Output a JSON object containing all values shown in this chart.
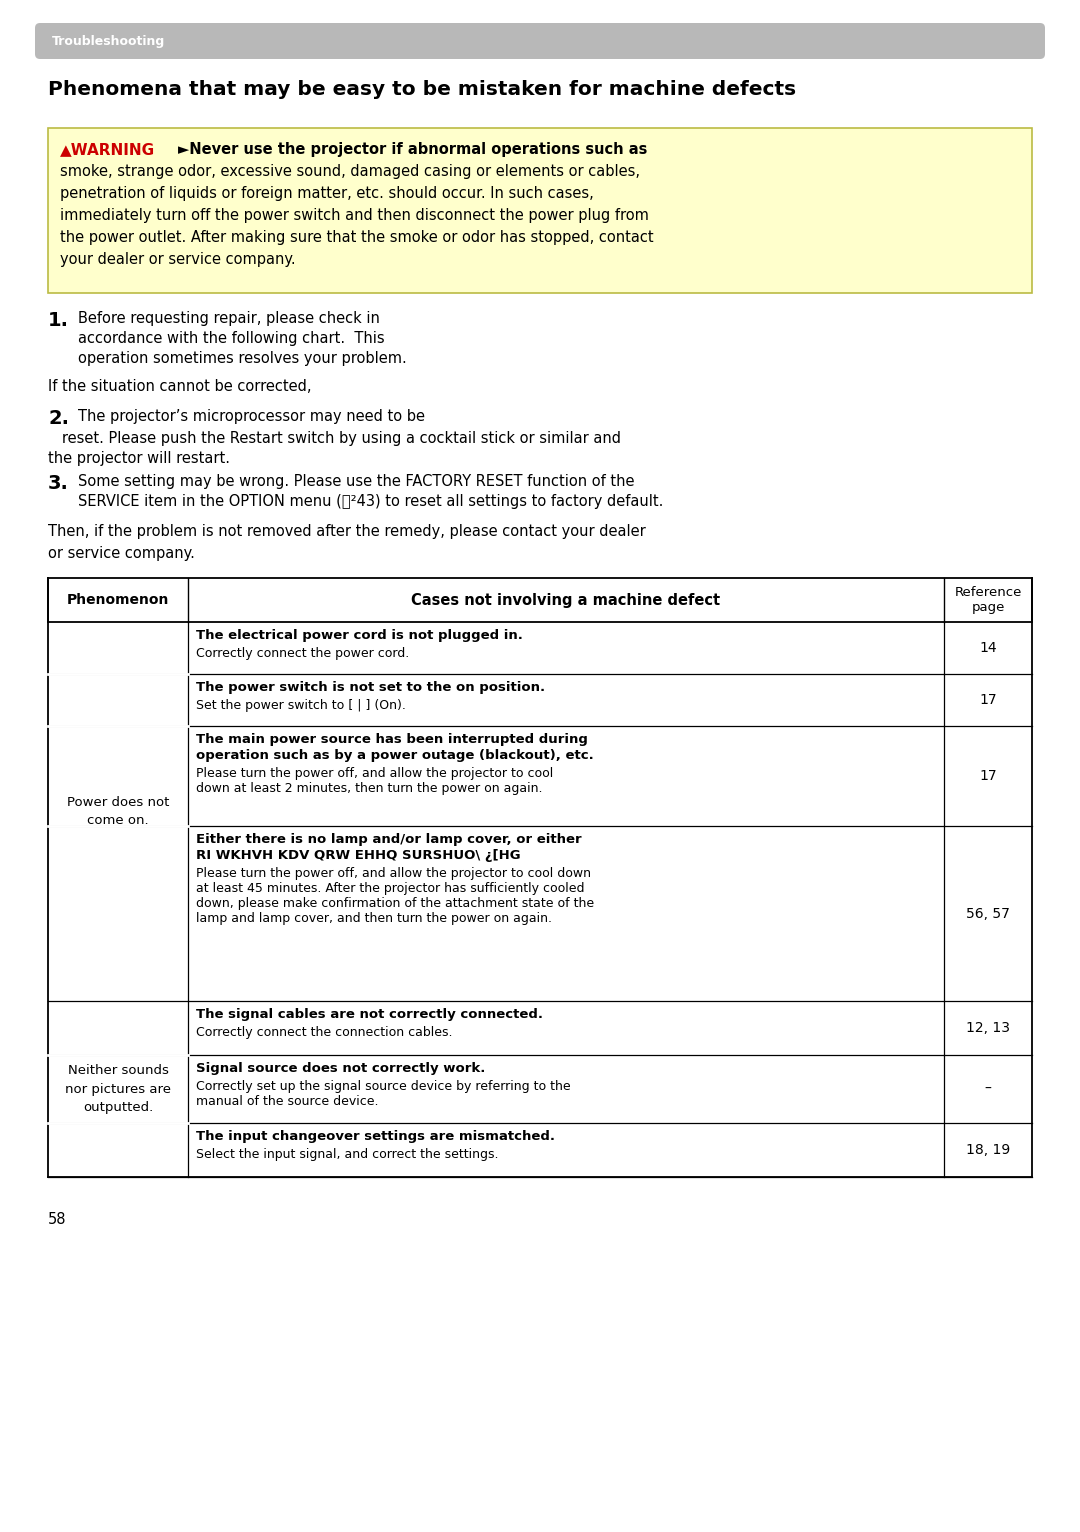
{
  "page_bg": "#ffffff",
  "header_bg": "#b8b8b8",
  "header_text": "Troubleshooting",
  "header_text_color": "#ffffff",
  "title": "Phenomena that may be easy to be mistaken for machine defects",
  "warning_bg": "#ffffcc",
  "warning_border": "#cccc44",
  "warning_label": "▲WARNING",
  "warning_arrow": "►",
  "warning_line1": "Never use the projector if abnormal operations such as",
  "warning_lines": [
    "smoke, strange odor, excessive sound, damaged casing or elements or cables,",
    "penetration of liquids or foreign matter, etc. should occur. In such cases,",
    "immediately turn off the power switch and then disconnect the power plug from",
    "the power outlet. After making sure that the smoke or odor has stopped, contact",
    "your dealer or service company."
  ],
  "step1a": "Before requesting repair, please check in\naccordance with the following chart.  This\noperation sometimes resolves your problem.",
  "step1b": "If the situation cannot be corrected,",
  "step2a": "The projector’s microprocessor may need to be",
  "step2b": "   reset. Please push the Restart switch by using a cocktail stick or similar and\nthe projector will restart.",
  "step3": "Some setting may be wrong. Please use the FACTORY RESET function of the\nSERVICE item in the OPTION menu (⍃²43) to reset all settings to factory default.",
  "para": "Then, if the problem is not removed after the remedy, please contact your dealer\nor service company.",
  "th_phenomenon": "Phenomenon",
  "th_cases": "Cases not involving a machine defect",
  "th_ref": "Reference\npage",
  "rows": [
    {
      "bold": "The electrical power cord is not plugged in.",
      "normal": "Correctly connect the power cord.",
      "ref": "14",
      "phenom": "",
      "rh": 52
    },
    {
      "bold": "The power switch is not set to the on position.",
      "normal": "Set the power switch to [ | ] (On).",
      "ref": "17",
      "phenom": "",
      "rh": 52
    },
    {
      "bold": "The main power source has been interrupted during\noperation such as by a power outage (blackout), etc.",
      "normal": "Please turn the power off, and allow the projector to cool\ndown at least 2 minutes, then turn the power on again.",
      "ref": "17",
      "phenom": "Power does not\ncome on.",
      "rh": 100
    },
    {
      "bold": "Either there is no lamp and/or lamp cover, or either\nRI WKHVH KDV QRW EHHQ SURSHUO\\ ¿[HG",
      "normal": "Please turn the power off, and allow the projector to cool down\nat least 45 minutes. After the projector has sufficiently cooled\ndown, please make confirmation of the attachment state of the\nlamp and lamp cover, and then turn the power on again.",
      "ref": "56, 57",
      "phenom": "",
      "rh": 175
    },
    {
      "bold": "The signal cables are not correctly connected.",
      "normal": "Correctly connect the connection cables.",
      "ref": "12, 13",
      "phenom": "Neither sounds\nnor pictures are\noutputted.",
      "rh": 54
    },
    {
      "bold": "Signal source does not correctly work.",
      "normal": "Correctly set up the signal source device by referring to the\nmanual of the source device.",
      "ref": "–",
      "phenom": "",
      "rh": 68
    },
    {
      "bold": "The input changeover settings are mismatched.",
      "normal": "Select the input signal, and correct the settings.",
      "ref": "18, 19",
      "phenom": "",
      "rh": 54
    }
  ],
  "footer": "58"
}
